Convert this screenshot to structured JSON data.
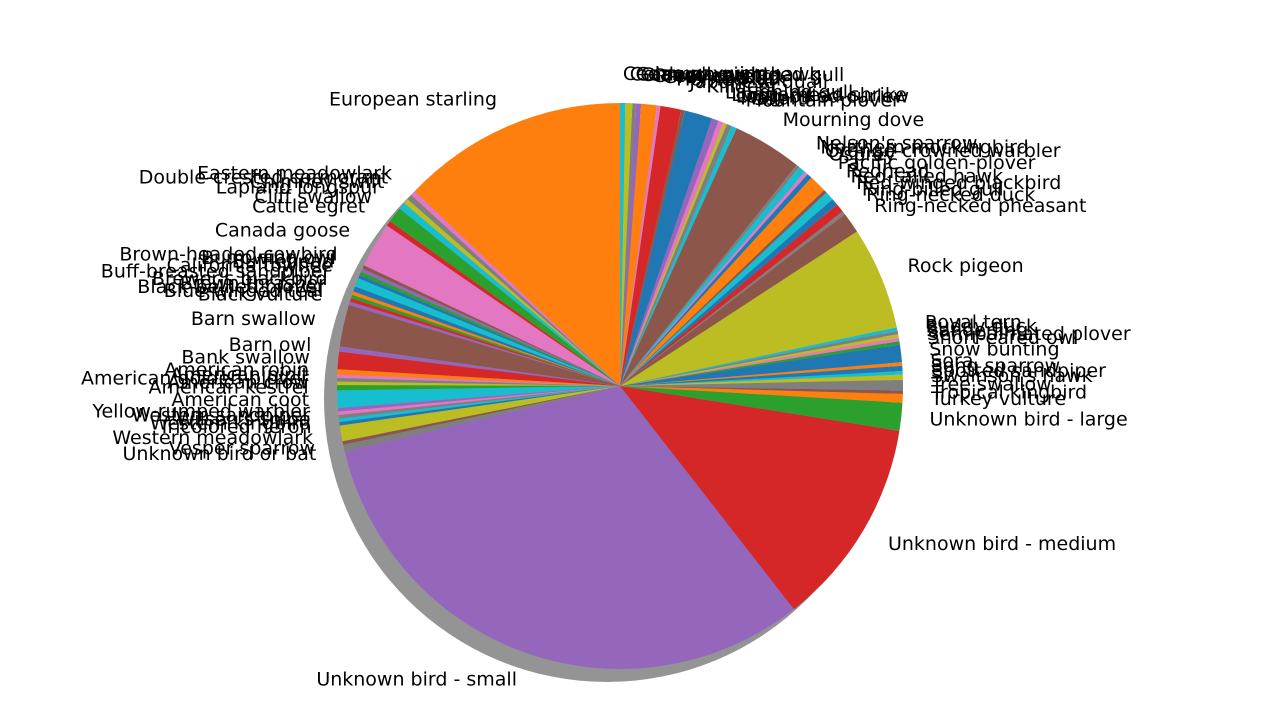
{
  "chart_data": {
    "type": "pie",
    "title": "",
    "shadow": true,
    "legend": "none",
    "slices": [
      {
        "label": "European starling",
        "value": 13.0,
        "color": "#ff7f0e"
      },
      {
        "label": "Eastern meadowlark",
        "value": 0.3,
        "color": "#e377c2"
      },
      {
        "label": "Double-crested cormorant",
        "value": 0.3,
        "color": "#7f7f7f"
      },
      {
        "label": "Chimney swift",
        "value": 0.3,
        "color": "#bcbd22"
      },
      {
        "label": "Lapland longspur",
        "value": 0.4,
        "color": "#17becf"
      },
      {
        "label": "Cliff swallow",
        "value": 0.9,
        "color": "#2ca02c"
      },
      {
        "label": "Cattle egret",
        "value": 0.3,
        "color": "#d62728"
      },
      {
        "label": "Canada goose",
        "value": 2.6,
        "color": "#e377c2"
      },
      {
        "label": "Brown-headed cowbird",
        "value": 0.2,
        "color": "#8c564b"
      },
      {
        "label": "Burrowing owl",
        "value": 0.2,
        "color": "#9467bd"
      },
      {
        "label": "Bufflehead",
        "value": 0.2,
        "color": "#2ca02c"
      },
      {
        "label": "California towhee",
        "value": 0.2,
        "color": "#1f77b4"
      },
      {
        "label": "Buff-breasted sandpiper",
        "value": 0.5,
        "color": "#17becf"
      },
      {
        "label": "Brewer's blackbird",
        "value": 0.3,
        "color": "#1f77b4"
      },
      {
        "label": "Brown thrasher",
        "value": 0.2,
        "color": "#ff7f0e"
      },
      {
        "label": "Black-bellied plover",
        "value": 0.2,
        "color": "#2ca02c"
      },
      {
        "label": "Blue-winged teal",
        "value": 0.2,
        "color": "#d62728"
      },
      {
        "label": "Black vulture",
        "value": 0.2,
        "color": "#9467bd"
      },
      {
        "label": "Barn swallow",
        "value": 2.4,
        "color": "#8c564b"
      },
      {
        "label": "Barn owl",
        "value": 0.3,
        "color": "#9467bd"
      },
      {
        "label": "Bank swallow",
        "value": 1.0,
        "color": "#d62728"
      },
      {
        "label": "American robin",
        "value": 0.3,
        "color": "#ff7f0e"
      },
      {
        "label": "American pipit",
        "value": 0.2,
        "color": "#e377c2"
      },
      {
        "label": "American golden-plover",
        "value": 0.2,
        "color": "#7f7f7f"
      },
      {
        "label": "American crow",
        "value": 0.2,
        "color": "#bcbd22"
      },
      {
        "label": "American kestrel",
        "value": 0.3,
        "color": "#2ca02c"
      },
      {
        "label": "American coot",
        "value": 1.0,
        "color": "#17becf"
      },
      {
        "label": "Yellow-rumped warbler",
        "value": 0.2,
        "color": "#9467bd"
      },
      {
        "label": "Western sandpiper",
        "value": 0.2,
        "color": "#e377c2"
      },
      {
        "label": "Wilson's snipe",
        "value": 0.2,
        "color": "#7f7f7f"
      },
      {
        "label": "Western kingbird",
        "value": 0.2,
        "color": "#17becf"
      },
      {
        "label": "Tricolored heron",
        "value": 0.2,
        "color": "#1f77b4"
      },
      {
        "label": "Western meadowlark",
        "value": 0.9,
        "color": "#bcbd22"
      },
      {
        "label": "Vesper sparrow",
        "value": 0.2,
        "color": "#8c564b"
      },
      {
        "label": "Unknown bird or bat",
        "value": 0.4,
        "color": "#7f7f7f"
      },
      {
        "label": "Unknown bird - small",
        "value": 32.0,
        "color": "#9467bd"
      },
      {
        "label": "Unknown bird - medium",
        "value": 12.0,
        "color": "#d62728"
      },
      {
        "label": "Unknown bird - large",
        "value": 1.6,
        "color": "#2ca02c"
      },
      {
        "label": "Turkey vulture",
        "value": 0.5,
        "color": "#ff7f0e"
      },
      {
        "label": "Tropical kingbird",
        "value": 0.2,
        "color": "#8c564b"
      },
      {
        "label": "Tree swallow",
        "value": 0.6,
        "color": "#7f7f7f"
      },
      {
        "label": "Swainson's hawk",
        "value": 0.3,
        "color": "#bcbd22"
      },
      {
        "label": "Spotted sandpiper",
        "value": 0.2,
        "color": "#17becf"
      },
      {
        "label": "Song sparrow",
        "value": 0.3,
        "color": "#1f77b4"
      },
      {
        "label": "Sora",
        "value": 0.2,
        "color": "#ff7f0e"
      },
      {
        "label": "Snow bunting",
        "value": 1.0,
        "color": "#1f77b4"
      },
      {
        "label": "Short-eared owl",
        "value": 0.2,
        "color": "#2ca02c"
      },
      {
        "label": "Semipalmated plover",
        "value": 0.2,
        "color": "#e377c2"
      },
      {
        "label": "Sanderling",
        "value": 0.2,
        "color": "#bcbd22"
      },
      {
        "label": "Ruddy duck",
        "value": 0.2,
        "color": "#7f7f7f"
      },
      {
        "label": "Royal tern",
        "value": 0.2,
        "color": "#17becf"
      },
      {
        "label": "Rock pigeon",
        "value": 5.9,
        "color": "#bcbd22"
      },
      {
        "label": "Ring-necked pheasant",
        "value": 1.2,
        "color": "#8c564b"
      },
      {
        "label": "Ring-necked duck",
        "value": 0.2,
        "color": "#7f7f7f"
      },
      {
        "label": "Ring-billed gull",
        "value": 0.5,
        "color": "#d62728"
      },
      {
        "label": "Red-winged blackbird",
        "value": 0.4,
        "color": "#1f77b4"
      },
      {
        "label": "Red-tailed hawk",
        "value": 0.5,
        "color": "#17becf"
      },
      {
        "label": "Redhead",
        "value": 0.2,
        "color": "#8c564b"
      },
      {
        "label": "Pacific golden-plover",
        "value": 1.0,
        "color": "#ff7f0e"
      },
      {
        "label": "Osprey",
        "value": 0.3,
        "color": "#1f77b4"
      },
      {
        "label": "Orange-crowned warbler",
        "value": 0.2,
        "color": "#e377c2"
      },
      {
        "label": "Northern mockingbird",
        "value": 0.4,
        "color": "#17becf"
      },
      {
        "label": "Nelson's sparrow",
        "value": 0.2,
        "color": "#7f7f7f"
      },
      {
        "label": "Mourning dove",
        "value": 4.0,
        "color": "#8c564b"
      },
      {
        "label": "Mountain plover",
        "value": 0.3,
        "color": "#17becf"
      },
      {
        "label": "Mallard",
        "value": 0.3,
        "color": "#7f7f7f"
      },
      {
        "label": "Long-billed curlew",
        "value": 0.2,
        "color": "#bcbd22"
      },
      {
        "label": "Loggerhead shrike",
        "value": 0.3,
        "color": "#e377c2"
      },
      {
        "label": "Laughing gull",
        "value": 0.4,
        "color": "#9467bd"
      },
      {
        "label": "Killdeer",
        "value": 1.6,
        "color": "#1f77b4"
      },
      {
        "label": "Japanese quail",
        "value": 0.2,
        "color": "#8c564b"
      },
      {
        "label": "Horned lark",
        "value": 1.2,
        "color": "#d62728"
      },
      {
        "label": "Gray catbird",
        "value": 0.2,
        "color": "#e377c2"
      },
      {
        "label": "Great egret",
        "value": 0.9,
        "color": "#ff7f0e"
      },
      {
        "label": "Glaucous-winged gull",
        "value": 0.3,
        "color": "#9467bd"
      },
      {
        "label": "Gadwall",
        "value": 0.2,
        "color": "#7f7f7f"
      },
      {
        "label": "Common nighthawk",
        "value": 0.4,
        "color": "#bcbd22"
      },
      {
        "label": "Cedar waxwing",
        "value": 0.3,
        "color": "#17becf"
      }
    ]
  }
}
